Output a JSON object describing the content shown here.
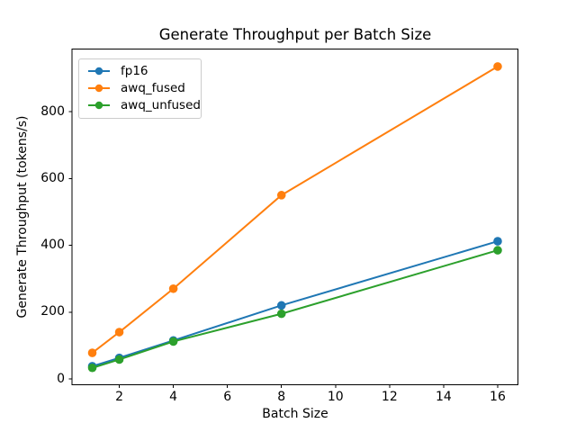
{
  "figure": {
    "background": "#ffffff",
    "axis_color": "#000000",
    "legend_border_color": "#cccccc"
  },
  "chart_data": {
    "type": "line",
    "title": "Generate Throughput per Batch Size",
    "xlabel": "Batch Size",
    "ylabel": "Generate Throughput (tokens/s)",
    "x": [
      1,
      2,
      4,
      8,
      16
    ],
    "series": [
      {
        "name": "fp16",
        "color": "#1f77b4",
        "values": [
          38,
          63,
          115,
          220,
          412
        ]
      },
      {
        "name": "awq_fused",
        "color": "#ff7f0e",
        "values": [
          78,
          140,
          270,
          550,
          935
        ]
      },
      {
        "name": "awq_unfused",
        "color": "#2ca02c",
        "values": [
          33,
          58,
          112,
          195,
          385
        ]
      }
    ],
    "x_ticks": [
      2,
      4,
      6,
      8,
      10,
      12,
      14,
      16
    ],
    "y_ticks": [
      0,
      200,
      400,
      600,
      800
    ],
    "xlim": [
      0.25,
      16.75
    ],
    "ylim": [
      -17.5,
      987.3
    ],
    "grid": false,
    "marker": "circle",
    "legend_position": "upper left"
  }
}
